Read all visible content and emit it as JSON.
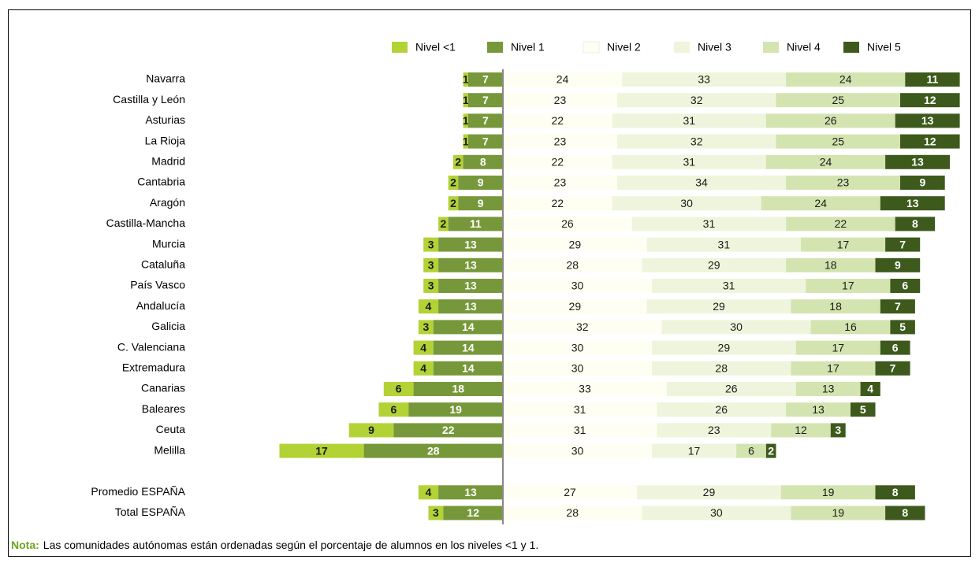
{
  "chart_data": {
    "type": "diverging_bar",
    "categories": [
      "Navarra",
      "Castilla y León",
      "Asturias",
      "La Rioja",
      "Madrid",
      "Cantabria",
      "Aragón",
      "Castilla-Mancha",
      "Murcia",
      "Cataluña",
      "País Vasco",
      "Andalucía",
      "Galicia",
      "C. Valenciana",
      "Extremadura",
      "Canarias",
      "Baleares",
      "Ceuta",
      "Melilla",
      "Promedio ESPAÑA",
      "Total ESPAÑA"
    ],
    "series": [
      {
        "name": "Nivel <1",
        "color": "#b3d236",
        "values": [
          1,
          1,
          1,
          1,
          2,
          2,
          2,
          2,
          3,
          3,
          3,
          4,
          3,
          4,
          4,
          6,
          6,
          9,
          17,
          4,
          3
        ]
      },
      {
        "name": "Nivel 1",
        "color": "#77983a",
        "values": [
          7,
          7,
          7,
          7,
          8,
          9,
          9,
          11,
          13,
          13,
          13,
          13,
          14,
          14,
          14,
          18,
          19,
          22,
          28,
          13,
          12
        ]
      },
      {
        "name": "Nivel 2",
        "color": "#fefef2",
        "values": [
          24,
          23,
          22,
          23,
          22,
          23,
          22,
          26,
          29,
          28,
          30,
          29,
          32,
          30,
          30,
          33,
          31,
          31,
          30,
          27,
          28
        ]
      },
      {
        "name": "Nivel 3",
        "color": "#eef5dc",
        "values": [
          33,
          32,
          31,
          32,
          31,
          34,
          30,
          31,
          31,
          29,
          31,
          29,
          30,
          29,
          28,
          26,
          26,
          23,
          17,
          29,
          30
        ]
      },
      {
        "name": "Nivel 4",
        "color": "#d4e4b0",
        "values": [
          24,
          25,
          26,
          25,
          24,
          23,
          24,
          22,
          17,
          18,
          17,
          18,
          16,
          17,
          17,
          13,
          13,
          12,
          6,
          19,
          19
        ]
      },
      {
        "name": "Nivel 5",
        "color": "#3d5a1c",
        "values": [
          11,
          12,
          13,
          12,
          13,
          9,
          13,
          8,
          7,
          9,
          6,
          7,
          5,
          6,
          7,
          4,
          5,
          3,
          2,
          8,
          8
        ]
      }
    ],
    "xlim": [
      -45,
      92
    ],
    "note_label": "Nota:",
    "note_text": "Las comunidades autónomas están ordenadas según el porcentaje de alumnos en los niveles <1 y 1."
  }
}
